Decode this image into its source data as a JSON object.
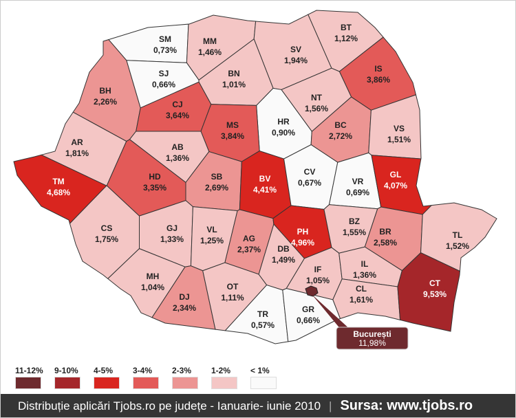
{
  "counties": [
    {
      "code": "SM",
      "value": "0,73%",
      "range": "<1"
    },
    {
      "code": "MM",
      "value": "1,46%",
      "range": "1-2"
    },
    {
      "code": "BT",
      "value": "1,12%",
      "range": "1-2"
    },
    {
      "code": "SV",
      "value": "1,94%",
      "range": "1-2"
    },
    {
      "code": "SJ",
      "value": "0,66%",
      "range": "<1"
    },
    {
      "code": "BN",
      "value": "1,01%",
      "range": "1-2"
    },
    {
      "code": "BH",
      "value": "2,26%",
      "range": "2-3"
    },
    {
      "code": "CJ",
      "value": "3,64%",
      "range": "3-4"
    },
    {
      "code": "IS",
      "value": "3,86%",
      "range": "3-4"
    },
    {
      "code": "NT",
      "value": "1,56%",
      "range": "1-2"
    },
    {
      "code": "HR",
      "value": "0,90%",
      "range": "<1"
    },
    {
      "code": "MS",
      "value": "3,84%",
      "range": "3-4"
    },
    {
      "code": "BC",
      "value": "2,72%",
      "range": "2-3"
    },
    {
      "code": "VS",
      "value": "1,51%",
      "range": "1-2"
    },
    {
      "code": "AR",
      "value": "1,81%",
      "range": "1-2"
    },
    {
      "code": "AB",
      "value": "1,36%",
      "range": "1-2"
    },
    {
      "code": "TM",
      "value": "4,68%",
      "range": "4-5"
    },
    {
      "code": "HD",
      "value": "3,35%",
      "range": "3-4"
    },
    {
      "code": "SB",
      "value": "2,69%",
      "range": "2-3"
    },
    {
      "code": "BV",
      "value": "4,41%",
      "range": "4-5"
    },
    {
      "code": "CV",
      "value": "0,67%",
      "range": "<1"
    },
    {
      "code": "VR",
      "value": "0,69%",
      "range": "<1"
    },
    {
      "code": "GL",
      "value": "4,07%",
      "range": "4-5"
    },
    {
      "code": "CS",
      "value": "1,75%",
      "range": "1-2"
    },
    {
      "code": "GJ",
      "value": "1,33%",
      "range": "1-2"
    },
    {
      "code": "VL",
      "value": "1,25%",
      "range": "1-2"
    },
    {
      "code": "AG",
      "value": "2,37%",
      "range": "2-3"
    },
    {
      "code": "PH",
      "value": "4,96%",
      "range": "4-5"
    },
    {
      "code": "BZ",
      "value": "1,55%",
      "range": "1-2"
    },
    {
      "code": "BR",
      "value": "2,58%",
      "range": "2-3"
    },
    {
      "code": "TL",
      "value": "1,52%",
      "range": "1-2"
    },
    {
      "code": "MH",
      "value": "1,04%",
      "range": "1-2"
    },
    {
      "code": "DJ",
      "value": "2,34%",
      "range": "2-3"
    },
    {
      "code": "OT",
      "value": "1,11%",
      "range": "1-2"
    },
    {
      "code": "DB",
      "value": "1,49%",
      "range": "1-2"
    },
    {
      "code": "IF",
      "value": "1,05%",
      "range": "1-2"
    },
    {
      "code": "IL",
      "value": "1,36%",
      "range": "1-2"
    },
    {
      "code": "CL",
      "value": "1,61%",
      "range": "1-2"
    },
    {
      "code": "CT",
      "value": "9,53%",
      "range": "9-10"
    },
    {
      "code": "TR",
      "value": "0,57%",
      "range": "<1"
    },
    {
      "code": "GR",
      "value": "0,66%",
      "range": "<1"
    }
  ],
  "bucuresti": {
    "name": "București",
    "value": "11,98%",
    "range": "11-12"
  },
  "legend": [
    {
      "key": "11-12",
      "label": "11-12%",
      "color": "#6e2a2e"
    },
    {
      "key": "9-10",
      "label": "9-10%",
      "color": "#a5262a"
    },
    {
      "key": "4-5",
      "label": "4-5%",
      "color": "#d9251f"
    },
    {
      "key": "3-4",
      "label": "3-4%",
      "color": "#e35a58"
    },
    {
      "key": "2-3",
      "label": "2-3%",
      "color": "#ec9593"
    },
    {
      "key": "1-2",
      "label": "1-2%",
      "color": "#f4c6c5"
    },
    {
      "key": "<1",
      "label": "< 1%",
      "color": "#fafafa"
    }
  ],
  "footer": {
    "caption": "Distribuție aplicări Tjobs.ro pe județe - Ianuarie- iunie  2010",
    "separator": "|",
    "source": "Sursa: www.tjobs.ro"
  }
}
